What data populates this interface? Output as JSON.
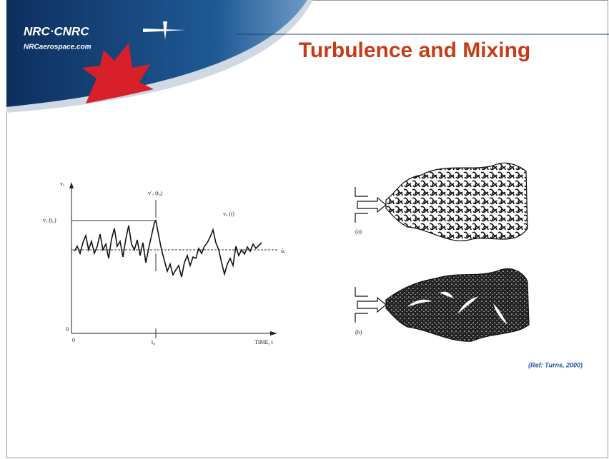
{
  "header": {
    "logo": "NRC·CNRC",
    "website": "NRCaerospace.com"
  },
  "title": "Turbulence and Mixing",
  "velocity_figure": {
    "y_axis": "vₓ",
    "level_label": "vₓ (t₀)",
    "fluctuation_label": "v′ₓ (t₀)",
    "signal_label": "vₓ (t)",
    "mean_label": "ūₓ",
    "y_origin": "0",
    "x_origin": "0",
    "time_mark": "t₀",
    "x_axis": "TIME, t"
  },
  "jet_figure": {
    "panel_a": "(a)",
    "panel_b": "(b)"
  },
  "reference": "(Ref: Turns, 2000)"
}
